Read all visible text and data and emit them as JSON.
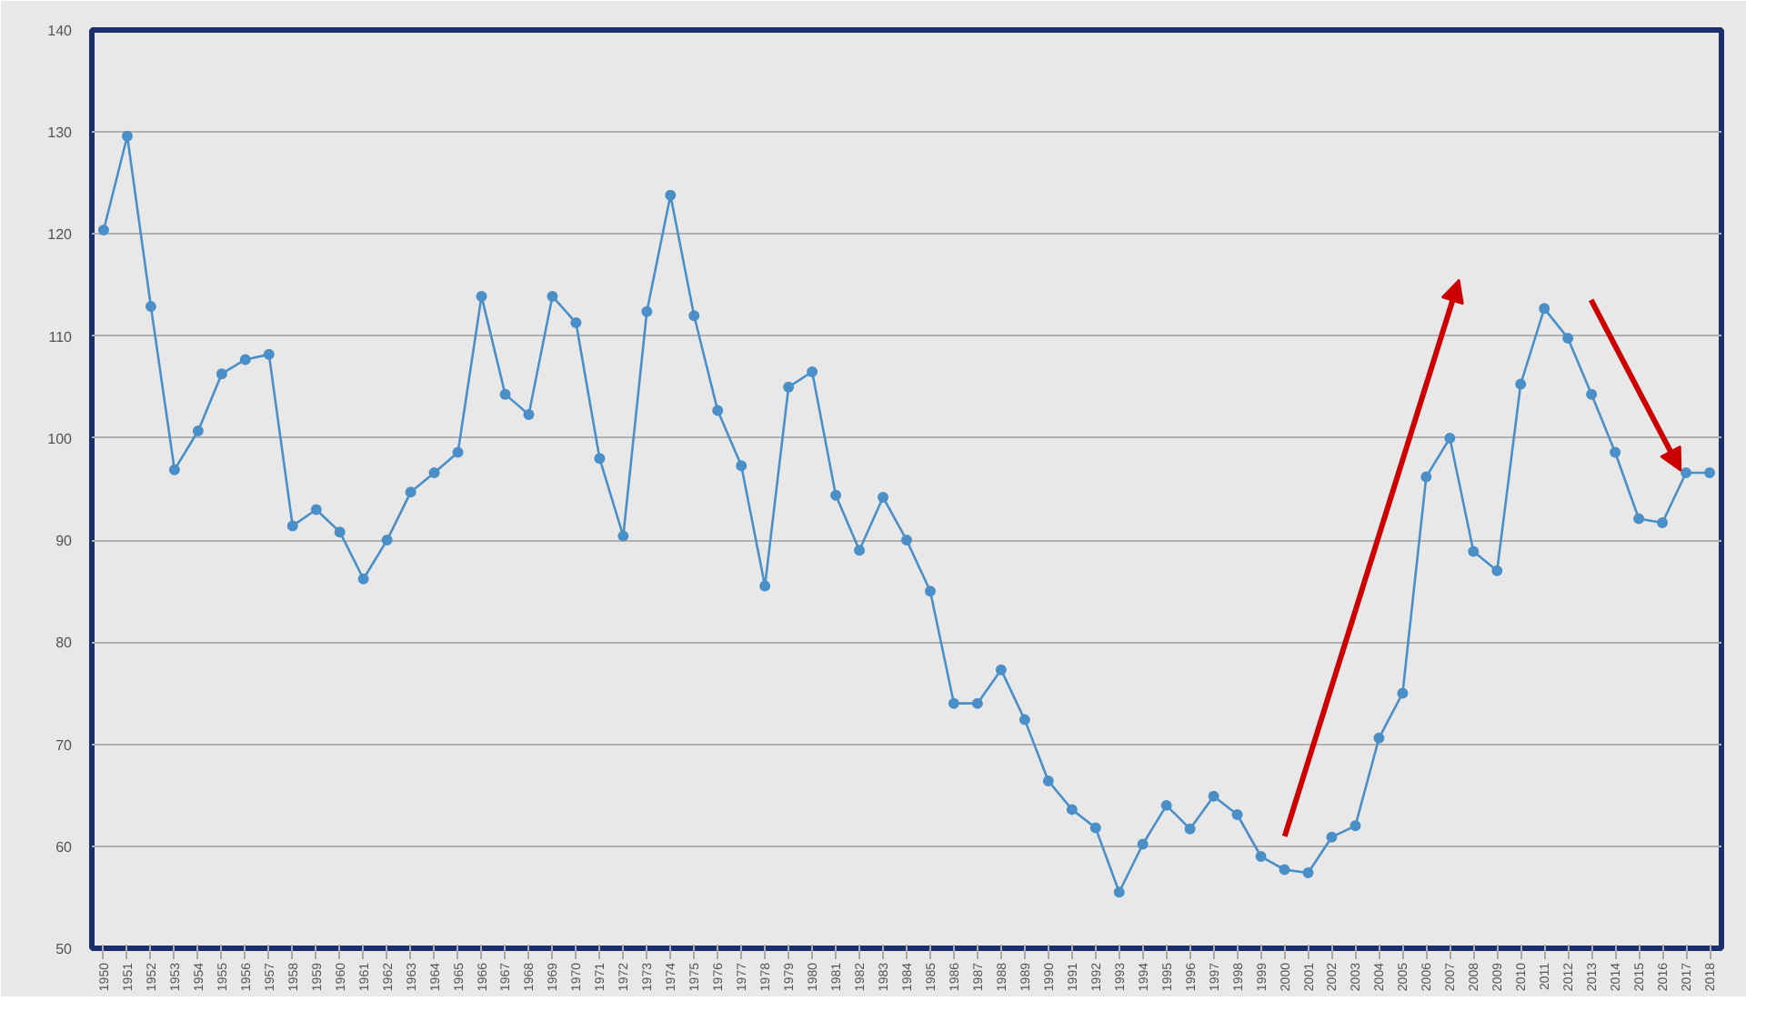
{
  "chart_data": {
    "type": "line",
    "x": [
      1950,
      1951,
      1952,
      1953,
      1954,
      1955,
      1956,
      1957,
      1958,
      1959,
      1960,
      1961,
      1962,
      1963,
      1964,
      1965,
      1966,
      1967,
      1968,
      1969,
      1970,
      1971,
      1972,
      1973,
      1974,
      1975,
      1976,
      1977,
      1978,
      1979,
      1980,
      1981,
      1982,
      1983,
      1984,
      1985,
      1986,
      1987,
      1988,
      1989,
      1990,
      1991,
      1992,
      1993,
      1994,
      1995,
      1996,
      1997,
      1998,
      1999,
      2000,
      2001,
      2002,
      2003,
      2004,
      2005,
      2006,
      2007,
      2008,
      2009,
      2010,
      2011,
      2012,
      2013,
      2014,
      2015,
      2016,
      2017,
      2018
    ],
    "series": [
      {
        "color": "#4a8fc7",
        "values": [
          120.4,
          129.6,
          112.9,
          96.9,
          100.7,
          106.3,
          107.7,
          108.2,
          91.4,
          93.0,
          90.8,
          86.2,
          90,
          94.7,
          96.6,
          98.6,
          113.9,
          104.3,
          102.3,
          113.9,
          111.3,
          98,
          90.4,
          112.4,
          123.8,
          112,
          102.7,
          97.3,
          85.5,
          105,
          106.5,
          94.4,
          89,
          94.2,
          90,
          85,
          74,
          74,
          77.3,
          72.4,
          66.4,
          63.6,
          61.8,
          55.5,
          60.2,
          64,
          61.7,
          64.9,
          63.1,
          59,
          57.7,
          57.4,
          60.9,
          62,
          70.6,
          75,
          96.2,
          100,
          88.9,
          87,
          105.3,
          112.7,
          109.8,
          104.3,
          98.6,
          92.1,
          91.7,
          96.6,
          96.6
        ]
      }
    ],
    "xlim": [
      1949.5,
      2018.5
    ],
    "xticks": [
      1950,
      1951,
      1952,
      1953,
      1954,
      1955,
      1956,
      1957,
      1958,
      1959,
      1960,
      1961,
      1962,
      1963,
      1964,
      1965,
      1966,
      1967,
      1968,
      1969,
      1970,
      1971,
      1972,
      1973,
      1974,
      1975,
      1976,
      1977,
      1978,
      1979,
      1980,
      1981,
      1982,
      1983,
      1984,
      1985,
      1986,
      1987,
      1988,
      1989,
      1990,
      1991,
      1992,
      1993,
      1994,
      1995,
      1996,
      1997,
      1998,
      1999,
      2000,
      2001,
      2002,
      2003,
      2004,
      2005,
      2006,
      2007,
      2008,
      2009,
      2010,
      2011,
      2012,
      2013,
      2014,
      2015,
      2016,
      2017,
      2018
    ],
    "ylim": [
      50,
      140
    ],
    "yticks": [
      50,
      60,
      70,
      80,
      90,
      100,
      110,
      120,
      130,
      140
    ],
    "grid": "y",
    "marker": "circle",
    "line_style": "solid"
  }
}
